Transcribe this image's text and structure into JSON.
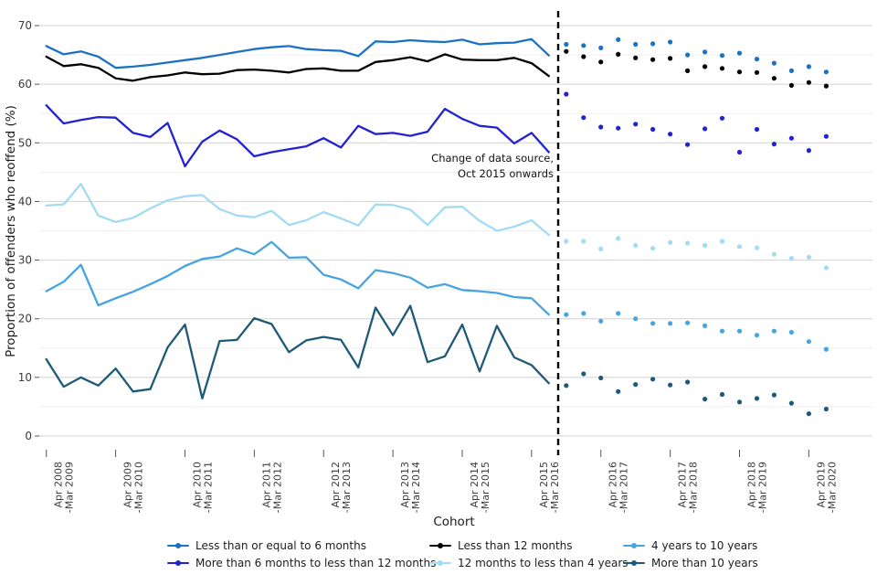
{
  "chart_data": {
    "type": "line",
    "title": "",
    "xlabel": "Cohort",
    "ylabel": "Proportion of offenders who reoffend (%)",
    "ylim": [
      0,
      72
    ],
    "yticks": [
      0,
      10,
      20,
      30,
      40,
      50,
      60,
      70
    ],
    "grid": "horizontal, major every 10 with faint minor every 5",
    "legend_position": "bottom",
    "x_year_labels": [
      [
        "Apr 2008",
        "-Mar 2009"
      ],
      [
        "Apr 2009",
        "-Mar 2010"
      ],
      [
        "Apr 2010",
        "-Mar 2011"
      ],
      [
        "Apr 2011",
        "-Mar 2012"
      ],
      [
        "Apr 2012",
        "-Mar 2013"
      ],
      [
        "Apr 2013",
        "-Mar 2014"
      ],
      [
        "Apr 2014",
        "-Mar 2015"
      ],
      [
        "Apr 2015",
        "-Mar 2016"
      ],
      [
        "Apr 2016",
        "-Mar 2017"
      ],
      [
        "Apr 2017",
        "-Mar 2018"
      ],
      [
        "Apr 2018",
        "-Mar 2019"
      ],
      [
        "Apr 2019",
        "-Mar 2020"
      ]
    ],
    "x_note": "quarterly cohorts; solid lines before Oct 2015, separate dots after change of data source",
    "annotation": {
      "line1": "Change of data source,",
      "line2": "Oct 2015 onwards"
    },
    "divider": {
      "style": "vertical black dashed line",
      "at": "Oct 2015"
    },
    "series": [
      {
        "name": "Less than or equal to 6 months",
        "color": "#1b72c4",
        "line": [
          66.5,
          65.1,
          65.6,
          64.7,
          62.8,
          63.0,
          63.3,
          63.7,
          64.1,
          64.5,
          65.0,
          65.5,
          66.0,
          66.3,
          66.5,
          66.0,
          65.8,
          65.7,
          64.8,
          67.3,
          67.2,
          67.5,
          67.3,
          67.2,
          67.6,
          66.8,
          67.0,
          67.1,
          67.7,
          64.9
        ],
        "dots": [
          66.8,
          66.6,
          66.2,
          67.6,
          66.8,
          66.9,
          67.2,
          65.0,
          65.5,
          64.9,
          65.3,
          64.3,
          63.6,
          62.3,
          63.0,
          62.1
        ]
      },
      {
        "name": "Less than 12 months",
        "color": "#000000",
        "line": [
          64.7,
          63.1,
          63.4,
          62.8,
          61.0,
          60.6,
          61.2,
          61.5,
          62.0,
          61.7,
          61.8,
          62.4,
          62.5,
          62.3,
          62.0,
          62.6,
          62.7,
          62.3,
          62.3,
          63.8,
          64.1,
          64.6,
          63.9,
          65.1,
          64.2,
          64.1,
          64.1,
          64.5,
          63.6,
          61.4
        ],
        "dots": [
          65.6,
          64.7,
          63.8,
          65.1,
          64.5,
          64.2,
          64.4,
          62.3,
          63.0,
          62.7,
          62.1,
          62.0,
          61.0,
          59.8,
          60.3,
          59.7
        ]
      },
      {
        "name": "More than 6 months to less than 12 months",
        "color": "#2222d0",
        "line": [
          56.4,
          53.3,
          53.9,
          54.4,
          54.3,
          51.7,
          51.0,
          53.4,
          46.0,
          50.2,
          52.1,
          50.6,
          47.7,
          48.4,
          48.9,
          49.4,
          50.8,
          49.2,
          52.9,
          51.5,
          51.7,
          51.2,
          51.9,
          55.8,
          54.1,
          52.9,
          52.6,
          49.9,
          51.7,
          48.4
        ],
        "dots": [
          58.3,
          54.3,
          52.7,
          52.5,
          53.2,
          52.3,
          51.5,
          49.7,
          52.4,
          54.2,
          48.4,
          52.3,
          49.8,
          50.8,
          48.7,
          51.1
        ]
      },
      {
        "name": "12 months to less than 4 years",
        "color": "#a2dbf3",
        "line": [
          39.3,
          39.5,
          43.0,
          37.6,
          36.5,
          37.2,
          38.8,
          40.2,
          40.9,
          41.1,
          38.7,
          37.6,
          37.3,
          38.4,
          36.0,
          36.8,
          38.2,
          37.1,
          35.9,
          39.5,
          39.4,
          38.6,
          36.0,
          39.0,
          39.1,
          36.7,
          35.0,
          35.7,
          36.8,
          34.3
        ],
        "dots": [
          33.2,
          33.2,
          31.9,
          33.7,
          32.5,
          32.0,
          33.0,
          32.9,
          32.5,
          33.2,
          32.3,
          32.1,
          31.0,
          30.3,
          30.5,
          28.7
        ]
      },
      {
        "name": "4 years to 10 years",
        "color": "#46a5e0",
        "line": [
          24.7,
          26.3,
          29.2,
          22.3,
          23.5,
          24.6,
          25.9,
          27.3,
          29.0,
          30.2,
          30.6,
          32.0,
          31.0,
          33.1,
          30.4,
          30.5,
          27.5,
          26.7,
          25.2,
          28.3,
          27.8,
          27.0,
          25.3,
          25.9,
          24.9,
          24.7,
          24.4,
          23.7,
          23.5,
          20.7
        ],
        "dots": [
          20.7,
          20.9,
          19.6,
          20.9,
          20.0,
          19.2,
          19.2,
          19.3,
          18.8,
          17.9,
          17.9,
          17.2,
          17.9,
          17.7,
          16.1,
          14.8
        ]
      },
      {
        "name": "More than 10 years",
        "color": "#1e5a78",
        "line": [
          13.1,
          8.4,
          10.0,
          8.6,
          11.5,
          7.6,
          8.0,
          15.1,
          19.0,
          6.4,
          16.2,
          16.4,
          20.1,
          19.1,
          14.3,
          16.3,
          16.9,
          16.4,
          11.7,
          21.9,
          17.2,
          22.2,
          12.6,
          13.6,
          19.0,
          11.0,
          18.8,
          13.4,
          12.1,
          9.0
        ],
        "dots": [
          8.6,
          10.6,
          9.9,
          7.6,
          8.8,
          9.7,
          8.7,
          9.2,
          6.3,
          7.1,
          5.8,
          6.4,
          7.0,
          5.6,
          3.8,
          4.6
        ]
      }
    ],
    "legend_columns": [
      [
        0,
        2
      ],
      [
        1,
        3
      ],
      [
        4,
        5
      ]
    ]
  }
}
